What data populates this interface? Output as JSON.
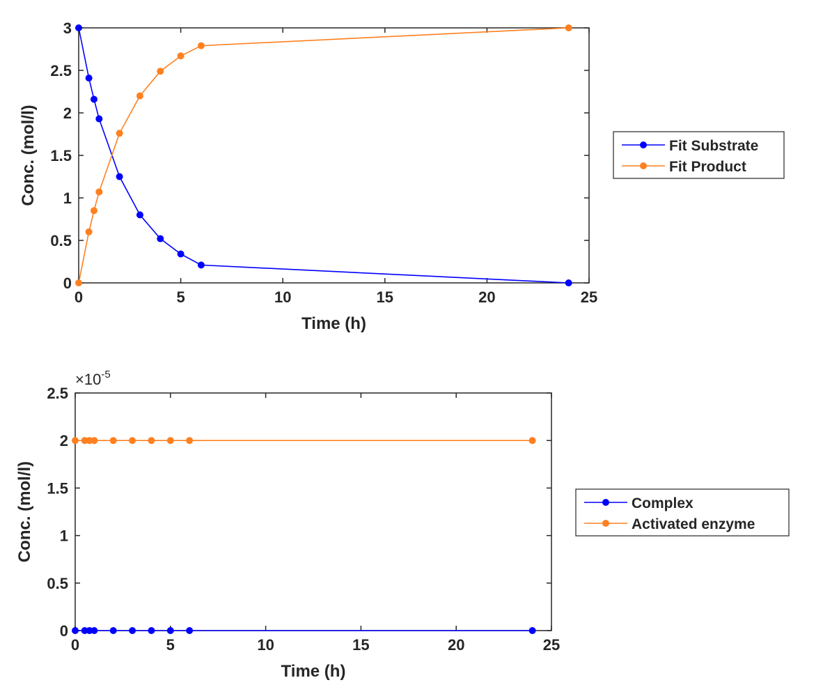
{
  "chart_data": [
    {
      "type": "line",
      "xlabel": "Time (h)",
      "ylabel": "Conc. (mol/l)",
      "xlim": [
        0,
        25
      ],
      "ylim": [
        0,
        3
      ],
      "xticks": [
        "0",
        "5",
        "10",
        "15",
        "20",
        "25"
      ],
      "yticks": [
        "0",
        "0.5",
        "1",
        "1.5",
        "2",
        "2.5",
        "3"
      ],
      "legend_position": "outside-right",
      "grid": false,
      "x": [
        0,
        0.5,
        0.75,
        1,
        2,
        3,
        4,
        5,
        6,
        24
      ],
      "series": [
        {
          "name": "Fit Substrate",
          "color": "#0000FF",
          "values": [
            3.0,
            2.41,
            2.16,
            1.93,
            1.25,
            0.8,
            0.52,
            0.34,
            0.21,
            0.0
          ]
        },
        {
          "name": "Fit Product",
          "color": "#FF8020",
          "values": [
            0.0,
            0.6,
            0.85,
            1.07,
            1.76,
            2.2,
            2.49,
            2.67,
            2.79,
            3.0
          ]
        }
      ]
    },
    {
      "type": "line",
      "xlabel": "Time (h)",
      "ylabel": "Conc. (mol/l)",
      "exponent_label": "×10",
      "exponent": "-5",
      "xlim": [
        0,
        25
      ],
      "ylim": [
        0,
        2.5
      ],
      "xticks": [
        "0",
        "5",
        "10",
        "15",
        "20",
        "25"
      ],
      "yticks": [
        "0",
        "0.5",
        "1",
        "1.5",
        "2",
        "2.5"
      ],
      "legend_position": "outside-right",
      "grid": false,
      "x": [
        0,
        0.5,
        0.75,
        1,
        2,
        3,
        4,
        5,
        6,
        24
      ],
      "series": [
        {
          "name": "Complex",
          "color": "#0000FF",
          "values": [
            0,
            0,
            0,
            0,
            0,
            0,
            0,
            0,
            0,
            0
          ]
        },
        {
          "name": "Activated enzyme",
          "color": "#FF8020",
          "values": [
            2,
            2,
            2,
            2,
            2,
            2,
            2,
            2,
            2,
            2
          ]
        }
      ]
    }
  ]
}
